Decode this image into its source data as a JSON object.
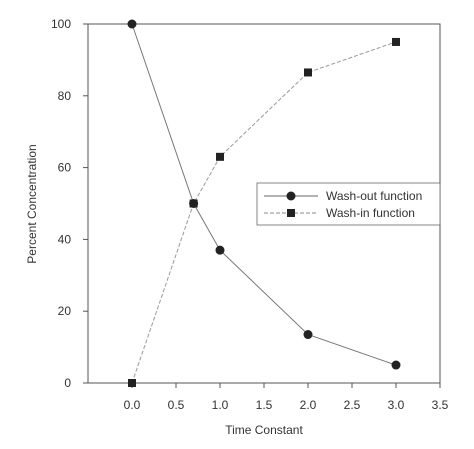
{
  "chart_data": {
    "type": "line",
    "xlabel": "Time Constant",
    "ylabel": "Percent Concentration",
    "xlim": [
      -0.5,
      3.5
    ],
    "ylim": [
      0,
      100
    ],
    "x_ticks": [
      0.0,
      0.5,
      1.0,
      1.5,
      2.0,
      2.5,
      3.0,
      3.5
    ],
    "x_tick_labels": [
      "0.0",
      "0.5",
      "1.0",
      "1.5",
      "2.0",
      "2.5",
      "3.0",
      "3.5"
    ],
    "y_ticks": [
      0,
      20,
      40,
      60,
      80,
      100
    ],
    "y_tick_labels": [
      "0",
      "20",
      "40",
      "60",
      "80",
      "100"
    ],
    "grid": false,
    "legend_position": "center-right",
    "series": [
      {
        "name": "Wash-out function",
        "marker": "circle",
        "color": "#222222",
        "x": [
          0.0,
          0.7,
          1.0,
          2.0,
          3.0
        ],
        "y": [
          100,
          50,
          37,
          13.5,
          5
        ]
      },
      {
        "name": "Wash-in function",
        "marker": "square",
        "color": "#222222",
        "x": [
          0.0,
          0.7,
          1.0,
          2.0,
          3.0
        ],
        "y": [
          0,
          50,
          63,
          86.5,
          95
        ]
      }
    ]
  }
}
